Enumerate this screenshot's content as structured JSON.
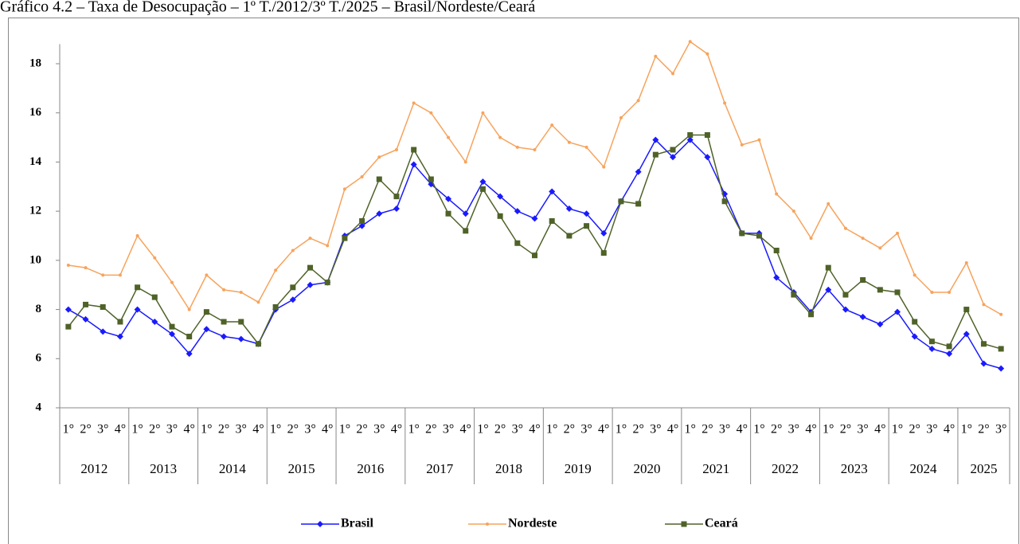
{
  "chart_data": {
    "type": "line",
    "title": "Gráfico 4.2 – Taxa de Desocupação – 1º T./2012/3º T./2025 – Brasil/Nordeste/Ceará",
    "categories": [
      "1°",
      "2°",
      "3°",
      "4°",
      "1°",
      "2°",
      "3°",
      "4°",
      "1°",
      "2°",
      "3°",
      "4°",
      "1°",
      "2°",
      "3°",
      "4°",
      "1°",
      "2°",
      "3°",
      "4°",
      "1°",
      "2°",
      "3°",
      "4°",
      "1°",
      "2°",
      "3°",
      "4°",
      "1°",
      "2°",
      "3°",
      "4°",
      "1°",
      "2°",
      "3°",
      "4°",
      "1°",
      "2°",
      "3°",
      "4°",
      "1°",
      "2°",
      "3°",
      "4°",
      "1°",
      "2°",
      "3°",
      "4°",
      "1°",
      "2°",
      "3°",
      "4°",
      "1°",
      "2°",
      "3°"
    ],
    "years": [
      "2012",
      "2013",
      "2014",
      "2015",
      "2016",
      "2017",
      "2018",
      "2019",
      "2020",
      "2021",
      "2022",
      "2023",
      "2024",
      "2025"
    ],
    "series": [
      {
        "name": "Brasil",
        "color": "#1a1aff",
        "marker": "diamond",
        "values": [
          8.0,
          7.6,
          7.1,
          6.9,
          8.0,
          7.5,
          7.0,
          6.2,
          7.2,
          6.9,
          6.8,
          6.6,
          8.0,
          8.4,
          9.0,
          9.1,
          11.0,
          11.4,
          11.9,
          12.1,
          13.9,
          13.1,
          12.5,
          11.9,
          13.2,
          12.6,
          12.0,
          11.7,
          12.8,
          12.1,
          11.9,
          11.1,
          12.4,
          13.6,
          14.9,
          14.2,
          14.9,
          14.2,
          12.7,
          11.1,
          11.1,
          9.3,
          8.7,
          7.9,
          8.8,
          8.0,
          7.7,
          7.4,
          7.9,
          6.9,
          6.4,
          6.2,
          7.0,
          5.8,
          5.6
        ]
      },
      {
        "name": "Nordeste",
        "color": "#f7a35c",
        "marker": "dot",
        "values": [
          9.8,
          9.7,
          9.4,
          9.4,
          11.0,
          10.1,
          9.1,
          8.0,
          9.4,
          8.8,
          8.7,
          8.3,
          9.6,
          10.4,
          10.9,
          10.6,
          12.9,
          13.4,
          14.2,
          14.5,
          16.4,
          16.0,
          15.0,
          14.0,
          16.0,
          15.0,
          14.6,
          14.5,
          15.5,
          14.8,
          14.6,
          13.8,
          15.8,
          16.5,
          18.3,
          17.6,
          18.9,
          18.4,
          16.4,
          14.7,
          14.9,
          12.7,
          12.0,
          10.9,
          12.3,
          11.3,
          10.9,
          10.5,
          11.1,
          9.4,
          8.7,
          8.7,
          9.9,
          8.2,
          7.8
        ]
      },
      {
        "name": "Ceará",
        "color": "#4f6228",
        "marker": "square",
        "values": [
          7.3,
          8.2,
          8.1,
          7.5,
          8.9,
          8.5,
          7.3,
          6.9,
          7.9,
          7.5,
          7.5,
          6.6,
          8.1,
          8.9,
          9.7,
          9.1,
          10.9,
          11.6,
          13.3,
          12.6,
          14.5,
          13.3,
          11.9,
          11.2,
          12.9,
          11.8,
          10.7,
          10.2,
          11.6,
          11.0,
          11.4,
          10.3,
          12.4,
          12.3,
          14.3,
          14.5,
          15.1,
          15.1,
          12.4,
          11.1,
          11.0,
          10.4,
          8.6,
          7.8,
          9.7,
          8.6,
          9.2,
          8.8,
          8.7,
          7.5,
          6.7,
          6.5,
          8.0,
          6.6,
          6.4
        ]
      }
    ],
    "ylim": [
      4,
      18.8
    ],
    "yticks": [
      4,
      6,
      8,
      10,
      12,
      14,
      16,
      18
    ],
    "grid": false,
    "legend": "bottom"
  }
}
